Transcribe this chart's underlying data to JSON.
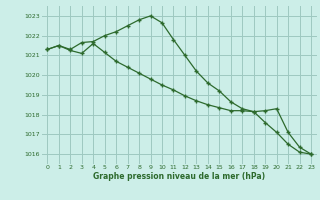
{
  "line1_x": [
    0,
    1,
    2,
    3,
    4,
    5,
    6,
    7,
    8,
    9,
    10,
    11,
    12,
    13,
    14,
    15,
    16,
    17,
    18,
    19,
    20,
    21,
    22,
    23
  ],
  "line1_y": [
    1021.3,
    1021.5,
    1021.3,
    1021.65,
    1021.7,
    1022.0,
    1022.2,
    1022.5,
    1022.8,
    1023.0,
    1022.65,
    1021.8,
    1021.0,
    1020.2,
    1019.6,
    1019.2,
    1018.65,
    1018.3,
    1018.15,
    1017.6,
    1017.1,
    1016.5,
    1016.1,
    1016.0
  ],
  "line2_x": [
    0,
    1,
    2,
    3,
    4,
    5,
    6,
    7,
    8,
    9,
    10,
    11,
    12,
    13,
    14,
    15,
    16,
    17,
    18,
    19,
    20,
    21,
    22,
    23
  ],
  "line2_y": [
    1021.3,
    1021.5,
    1021.25,
    1021.1,
    1021.6,
    1021.15,
    1020.7,
    1020.4,
    1020.1,
    1019.8,
    1019.5,
    1019.25,
    1018.95,
    1018.7,
    1018.5,
    1018.35,
    1018.2,
    1018.2,
    1018.15,
    1018.2,
    1018.3,
    1017.1,
    1016.35,
    1016.0
  ],
  "line_color": "#2d6a2d",
  "bg_color": "#cceee8",
  "grid_color": "#9ec8c0",
  "xlabel": "Graphe pression niveau de la mer (hPa)",
  "ylim": [
    1015.5,
    1023.5
  ],
  "xlim": [
    -0.5,
    23.5
  ],
  "yticks": [
    1016,
    1017,
    1018,
    1019,
    1020,
    1021,
    1022,
    1023
  ],
  "xticks": [
    0,
    1,
    2,
    3,
    4,
    5,
    6,
    7,
    8,
    9,
    10,
    11,
    12,
    13,
    14,
    15,
    16,
    17,
    18,
    19,
    20,
    21,
    22,
    23
  ]
}
